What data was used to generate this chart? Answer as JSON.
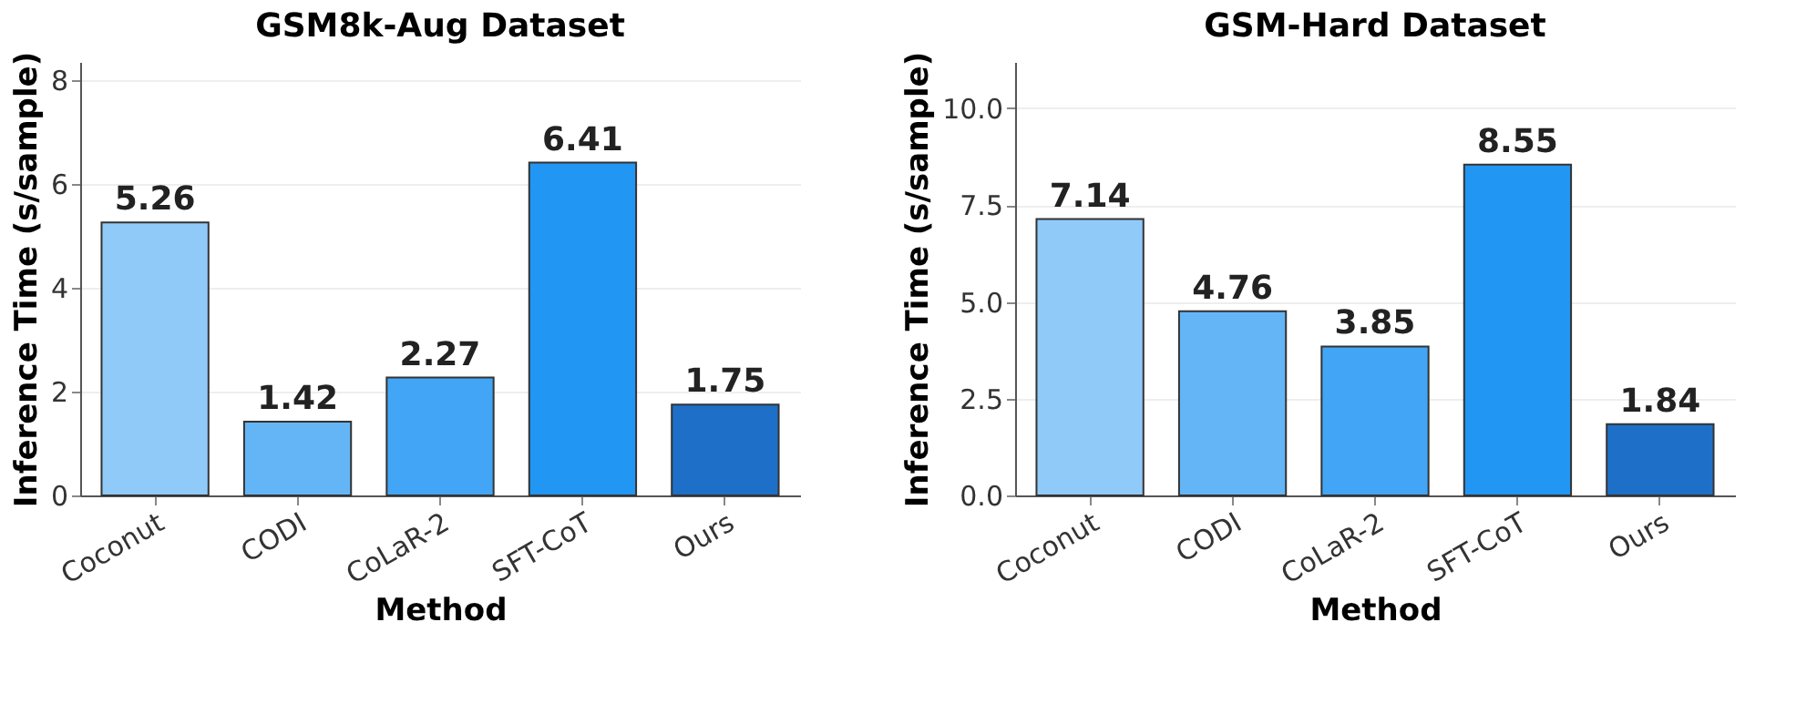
{
  "chart_data": [
    {
      "type": "bar",
      "title": "GSM8k-Aug Dataset",
      "xlabel": "Method",
      "ylabel": "Inference Time (s/sample)",
      "categories": [
        "Coconut",
        "CODI",
        "CoLaR-2",
        "SFT-CoT",
        "Ours"
      ],
      "values": [
        5.26,
        1.42,
        2.27,
        6.41,
        1.75
      ],
      "colors": [
        "#90caf9",
        "#64b5f6",
        "#42a5f5",
        "#2196f3",
        "#1e6fc8"
      ],
      "ylim": [
        0,
        8.35
      ],
      "yticks": [
        0,
        2,
        4,
        6,
        8
      ],
      "grid": "y",
      "data_labels": true
    },
    {
      "type": "bar",
      "title": "GSM-Hard Dataset",
      "xlabel": "Method",
      "ylabel": "Inference Time (s/sample)",
      "categories": [
        "Coconut",
        "CODI",
        "CoLaR-2",
        "SFT-CoT",
        "Ours"
      ],
      "values": [
        7.14,
        4.76,
        3.85,
        8.55,
        1.84
      ],
      "colors": [
        "#90caf9",
        "#64b5f6",
        "#42a5f5",
        "#2196f3",
        "#1e6fc8"
      ],
      "ylim": [
        0,
        11.2
      ],
      "yticks": [
        {
          "value": 0,
          "label": "0.0"
        },
        2.5,
        {
          "value": 5,
          "label": "5.0"
        },
        7.5,
        {
          "value": 10,
          "label": "10.0"
        }
      ],
      "grid": "y",
      "data_labels": true
    }
  ]
}
